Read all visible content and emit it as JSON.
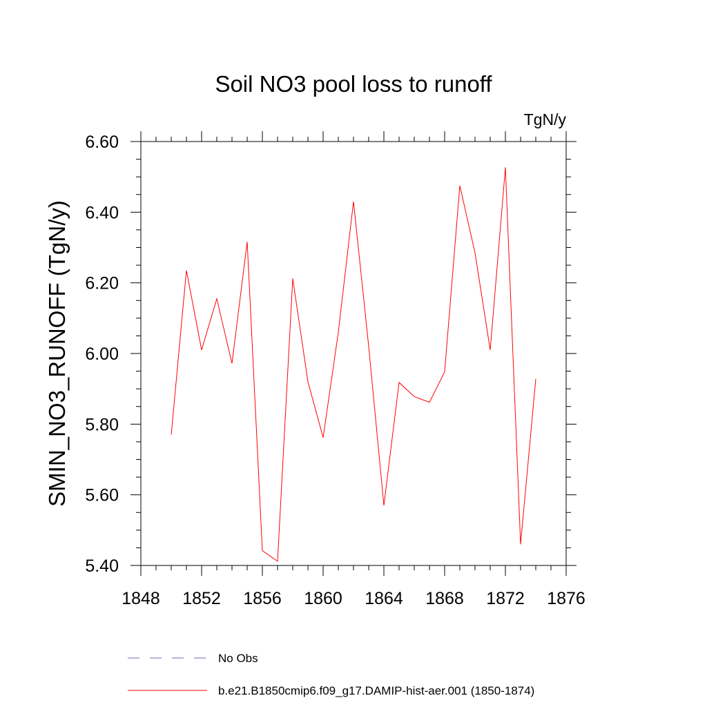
{
  "chart_data": {
    "type": "line",
    "title": "Soil NO3 pool loss to runoff",
    "units": "TgN/y",
    "ylabel": "SMIN_NO3_RUNOFF  (TgN/y)",
    "xlabel": "",
    "xlim": [
      1848,
      1876
    ],
    "ylim": [
      5.4,
      6.6
    ],
    "x_ticks": [
      "1848",
      "1852",
      "1856",
      "1860",
      "1864",
      "1868",
      "1872",
      "1876"
    ],
    "y_ticks": [
      "5.40",
      "5.60",
      "5.80",
      "6.00",
      "6.20",
      "6.40",
      "6.60"
    ],
    "grid": false,
    "legend_placement": "bottom",
    "x": [
      1850,
      1851,
      1852,
      1853,
      1854,
      1855,
      1856,
      1857,
      1858,
      1859,
      1860,
      1861,
      1862,
      1863,
      1864,
      1865,
      1866,
      1867,
      1868,
      1869,
      1870,
      1871,
      1872,
      1873,
      1874
    ],
    "series": [
      {
        "name": "b.e21.B1850cmip6.f09_g17.DAMIP-hist-aer.001 (1850-1874)",
        "color": "#ff0000",
        "style": "solid",
        "values": [
          5.77,
          6.235,
          6.01,
          6.155,
          5.972,
          6.316,
          5.442,
          5.412,
          6.212,
          5.92,
          5.762,
          6.06,
          6.43,
          6.02,
          5.57,
          5.918,
          5.878,
          5.862,
          5.948,
          6.475,
          6.285,
          6.01,
          6.527,
          5.46,
          5.928
        ]
      }
    ],
    "legend": [
      {
        "label": "No Obs",
        "color": "#6b6bb8",
        "style": "dashed"
      },
      {
        "label": "b.e21.B1850cmip6.f09_g17.DAMIP-hist-aer.001 (1850-1874)",
        "color": "#ff0000",
        "style": "solid"
      }
    ]
  }
}
